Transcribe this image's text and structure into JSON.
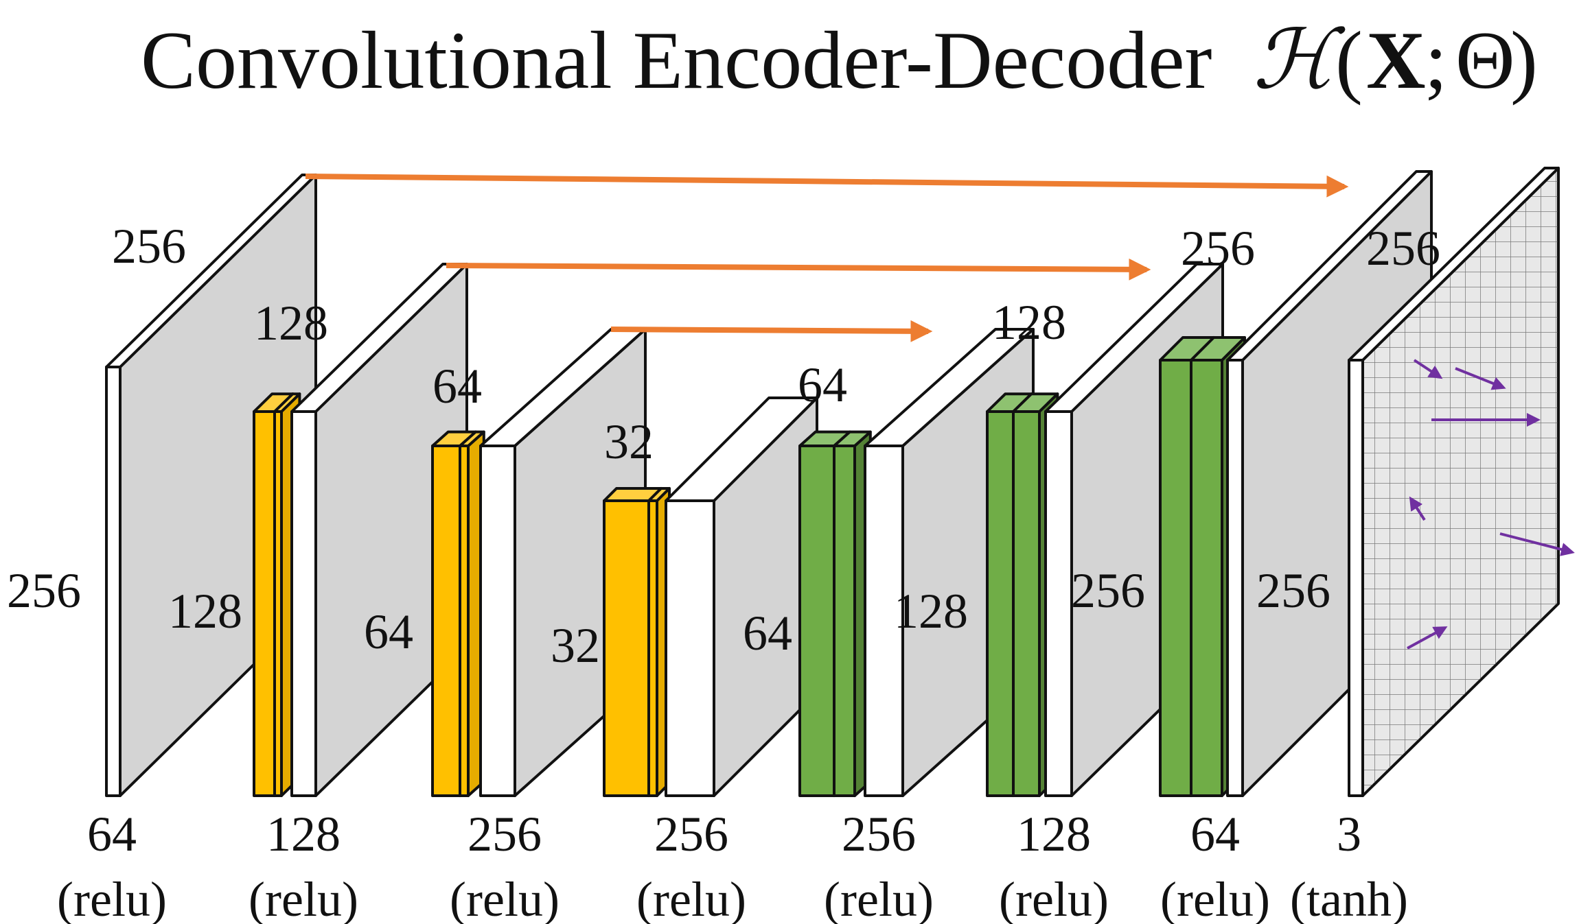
{
  "title": "Convolutional Encoder-Decoder",
  "title_math": {
    "script_h": "ℋ",
    "open_paren": "(",
    "x_bold": "X",
    "separator": ";",
    "theta": "Θ",
    "close_paren": ")"
  },
  "colors": {
    "encoder_front": "#ffc000",
    "encoder_side": "#e6ac00",
    "encoder_top": "#ffcf3f",
    "decoder_front": "#70ad47",
    "decoder_side": "#548235",
    "decoder_top": "#8ec270",
    "feature_map_side": "#d4d4d4",
    "skip_arrow": "#ed7d31",
    "flow_arrow": "#7030a0"
  },
  "blocks": [
    {
      "id": "input",
      "bottom": {
        "channels": "64",
        "activation": "(relu)"
      },
      "size_top": "256",
      "size_left": "256"
    },
    {
      "id": "enc1",
      "bottom": {
        "channels": "128",
        "activation": "(relu)"
      },
      "size_top": "128",
      "size_left": "128"
    },
    {
      "id": "enc2",
      "bottom": {
        "channels": "256",
        "activation": "(relu)"
      },
      "size_top": "64",
      "size_left": "64"
    },
    {
      "id": "enc3",
      "bottom": {
        "channels": "256",
        "activation": "(relu)"
      },
      "size_top": "32",
      "size_left": "32"
    },
    {
      "id": "dec1",
      "bottom": {
        "channels": "256",
        "activation": "(relu)"
      },
      "size_top": "64",
      "size_left": "64"
    },
    {
      "id": "dec2",
      "bottom": {
        "channels": "128",
        "activation": "(relu)"
      },
      "size_top": "128",
      "size_left": "128"
    },
    {
      "id": "dec3",
      "bottom": {
        "channels": "64",
        "activation": "(relu)"
      },
      "size_top": "256",
      "size_left": "256"
    },
    {
      "id": "output",
      "bottom": {
        "channels": "3",
        "activation": "(tanh)"
      },
      "size_top": "256",
      "size_left": "256"
    }
  ]
}
